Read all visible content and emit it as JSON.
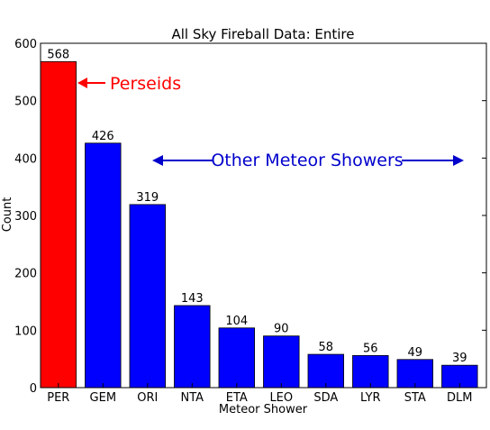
{
  "chart_data": {
    "type": "bar",
    "title": "All Sky Fireball Data: Entire",
    "xlabel": "Meteor Shower",
    "ylabel": "Count",
    "categories": [
      "PER",
      "GEM",
      "ORI",
      "NTA",
      "ETA",
      "LEO",
      "SDA",
      "LYR",
      "STA",
      "DLM"
    ],
    "values": [
      568,
      426,
      319,
      143,
      104,
      90,
      58,
      56,
      49,
      39
    ],
    "colors": [
      "#ff0000",
      "#0000ff",
      "#0000ff",
      "#0000ff",
      "#0000ff",
      "#0000ff",
      "#0000ff",
      "#0000ff",
      "#0000ff",
      "#0000ff"
    ],
    "ylim": [
      0,
      600
    ],
    "yticks": [
      0,
      100,
      200,
      300,
      400,
      500,
      600
    ],
    "grid": false,
    "annotations": [
      {
        "text": "Perseids",
        "color": "#ff0000",
        "arrow": "left"
      },
      {
        "text": "Other Meteor Showers",
        "color": "#0000cc",
        "arrow": "both"
      }
    ]
  }
}
